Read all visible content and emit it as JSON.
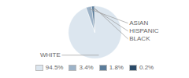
{
  "chart_data": {
    "type": "pie",
    "categories": [
      "WHITE",
      "ASIAN",
      "HISPANIC",
      "BLACK"
    ],
    "values": [
      94.5,
      3.4,
      1.8,
      0.2
    ],
    "value_labels": [
      "94.5%",
      "3.4%",
      "1.8%",
      "0.2%"
    ],
    "colors": [
      "#dce6ef",
      "#9db3c8",
      "#5b7d9b",
      "#2a4a68"
    ],
    "legend": "bottom"
  }
}
